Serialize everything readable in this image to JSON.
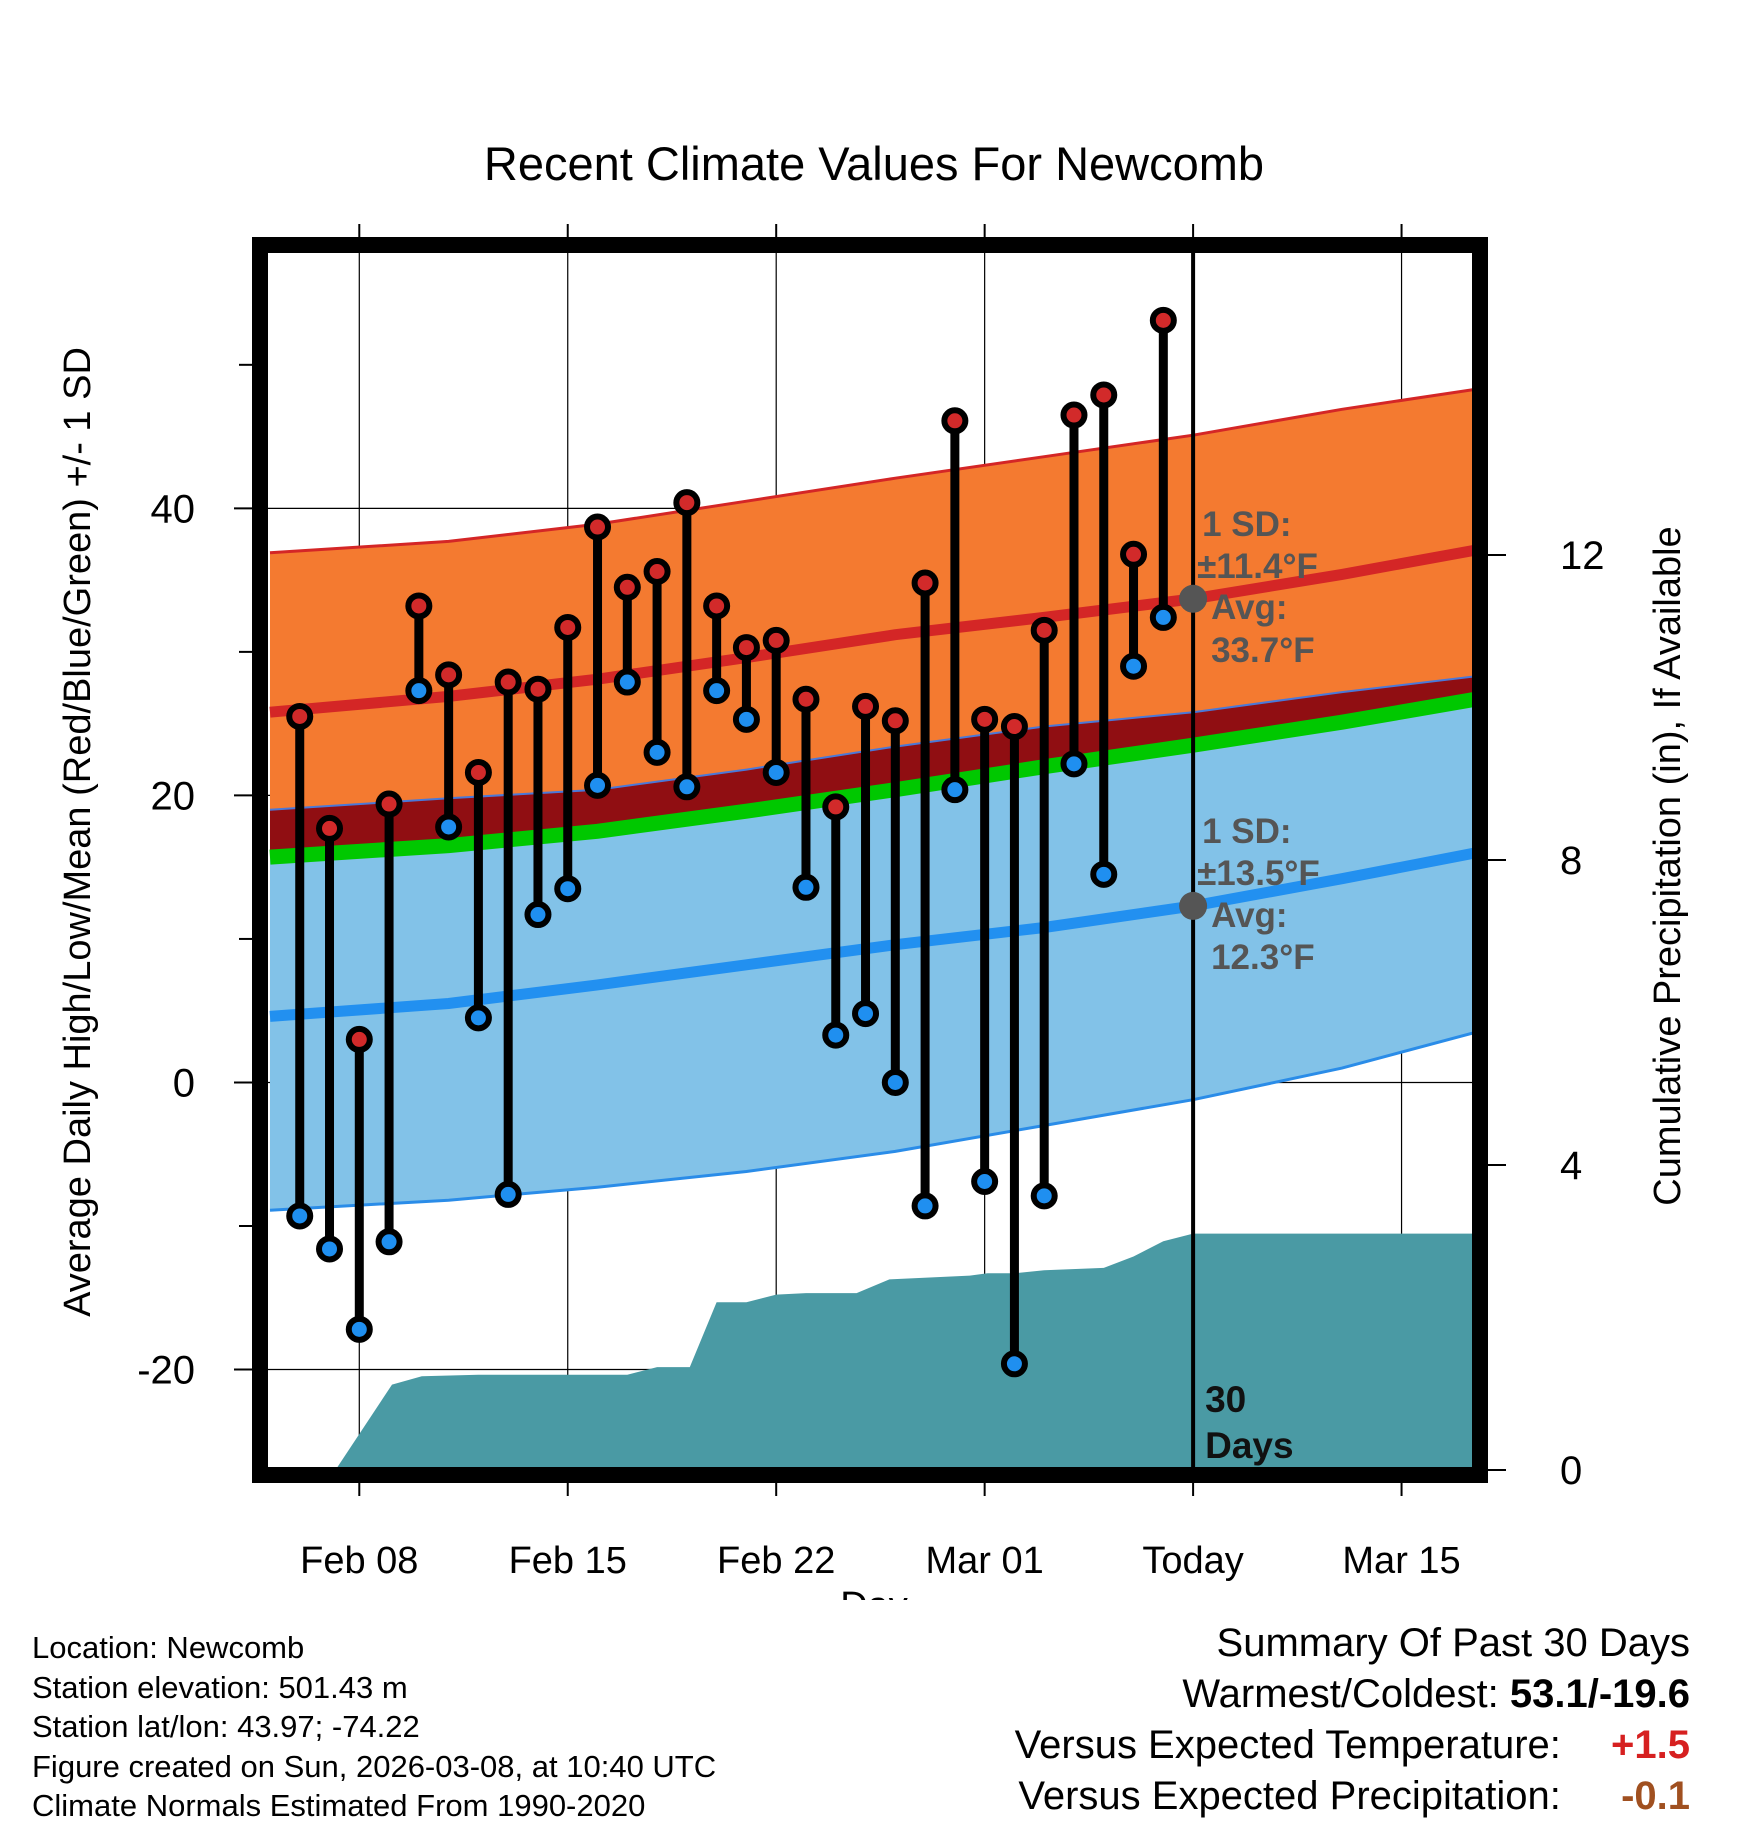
{
  "colors": {
    "high_band": "#f47a30",
    "high_edge": "#d42626",
    "high_avg": "#d42626",
    "low_band": "#82c2e8",
    "low_edge": "#2a8ce8",
    "low_avg": "#2290f0",
    "mean_band": "#00c800",
    "overlap": "#900e12",
    "precip": "#4a9aa4",
    "high_dot": "#d22a2a",
    "low_dot": "#1f8ff0",
    "annotation": "#555555",
    "positive": "#d62020",
    "negative": "#a05020"
  },
  "chart_data": {
    "type": "line",
    "title": "Recent Climate Values For Newcomb",
    "xlabel": "Day",
    "ylabel": "Average Daily High/Low/Mean (Red/Blue/Green) +/- 1 SD",
    "y2label": "Cumulative Precipitation (in), If Available",
    "x_range_days": [
      -31.2,
      9.5
    ],
    "ylim": [
      -27,
      58
    ],
    "y_ticks": [
      -20,
      0,
      20,
      40
    ],
    "y2lim": [
      0,
      16
    ],
    "y2_ticks": [
      0,
      4,
      8,
      12
    ],
    "x_ticks": [
      {
        "day": -28,
        "label": "Feb 08"
      },
      {
        "day": -21,
        "label": "Feb 15"
      },
      {
        "day": -14,
        "label": "Feb 22"
      },
      {
        "day": -7,
        "label": "Mar 01"
      },
      {
        "day": 0,
        "label": "Today"
      },
      {
        "day": 7,
        "label": "Mar 15"
      }
    ],
    "days": [
      -30,
      -29,
      -28,
      -27,
      -26,
      -25,
      -24,
      -23,
      -22,
      -21,
      -20,
      -19,
      -18,
      -17,
      -16,
      -15,
      -14,
      -13,
      -12,
      -11,
      -10,
      -9,
      -8,
      -7,
      -6,
      -5,
      -4,
      -3,
      -2,
      -1
    ],
    "highs": [
      25.5,
      17.7,
      3.0,
      19.4,
      33.2,
      28.4,
      21.6,
      27.9,
      27.4,
      31.7,
      38.7,
      34.5,
      35.6,
      40.4,
      33.2,
      30.3,
      30.8,
      26.7,
      19.2,
      26.2,
      25.2,
      34.8,
      46.1,
      25.3,
      24.8,
      31.5,
      46.5,
      47.9,
      36.8,
      53.1
    ],
    "lows": [
      -9.3,
      -11.6,
      -17.2,
      -11.1,
      27.3,
      17.8,
      4.5,
      -7.8,
      11.7,
      13.5,
      20.7,
      27.9,
      23.0,
      20.6,
      27.3,
      25.3,
      21.6,
      13.6,
      3.3,
      4.8,
      0.0,
      -8.6,
      20.4,
      -6.9,
      -19.6,
      -7.9,
      22.2,
      14.5,
      29.0,
      32.4
    ],
    "normals": {
      "days": [
        -31,
        -25,
        -20,
        -15,
        -10,
        -5,
        0,
        5,
        9.5
      ],
      "high_avg": [
        25.8,
        26.9,
        28.1,
        29.6,
        31.2,
        32.4,
        33.7,
        35.4,
        37.1
      ],
      "high_plus_sd": [
        36.9,
        37.7,
        38.9,
        40.5,
        42.1,
        43.6,
        45.1,
        46.9,
        48.3
      ],
      "low_avg": [
        4.6,
        5.5,
        6.8,
        8.2,
        9.6,
        10.8,
        12.3,
        14.2,
        16.0
      ],
      "low_plus_sd": [
        19.0,
        19.8,
        20.4,
        21.8,
        23.4,
        24.8,
        25.8,
        27.2,
        28.3
      ],
      "low_minus_sd": [
        -8.9,
        -8.2,
        -7.3,
        -6.2,
        -4.8,
        -3.0,
        -1.2,
        1.0,
        3.5
      ],
      "mean_avg": [
        15.7,
        16.5,
        17.5,
        18.9,
        20.4,
        22.0,
        23.5,
        25.1,
        26.7
      ]
    },
    "precip_cumulative": {
      "days": [
        -28.8,
        -26.9,
        -25.9,
        -24,
        -22,
        -21,
        -19,
        -18,
        -17.6,
        -16.9,
        -16,
        -15,
        -14,
        -13,
        -11.3,
        -10.2,
        -7.5,
        -6.9,
        -6,
        -5,
        -3,
        -2,
        -1,
        0,
        9.5
      ],
      "values": [
        0,
        1.12,
        1.23,
        1.25,
        1.25,
        1.25,
        1.25,
        1.35,
        1.35,
        1.35,
        2.2,
        2.2,
        2.3,
        2.32,
        2.32,
        2.5,
        2.55,
        2.58,
        2.58,
        2.62,
        2.65,
        2.8,
        3.0,
        3.1,
        3.1
      ]
    },
    "annotations": {
      "high_sd": "1 SD:",
      "high_sd_value": "±11.4°F",
      "high_avg_label": "Avg:",
      "high_avg_value": "33.7°F",
      "low_sd": "1 SD:",
      "low_sd_value": "±13.5°F",
      "low_avg_label": "Avg:",
      "low_avg_value": "12.3°F",
      "precip_days_num": "30",
      "precip_days_word": "Days"
    }
  },
  "meta": {
    "location": "Location: Newcomb",
    "elevation": "Station elevation: 501.43 m",
    "latlon": "Station lat/lon: 43.97; -74.22",
    "created": "Figure created on Sun, 2026-03-08, at 10:40 UTC",
    "normals": "Climate Normals Estimated From 1990-2020"
  },
  "summary": {
    "title": "Summary Of Past 30 Days",
    "warmest_label": "Warmest/Coldest: ",
    "warmest_value": "53.1/-19.6",
    "temp_label": "Versus Expected Temperature: ",
    "temp_value": "+1.5",
    "precip_label": "Versus Expected Precipitation: ",
    "precip_value": "-0.1"
  }
}
